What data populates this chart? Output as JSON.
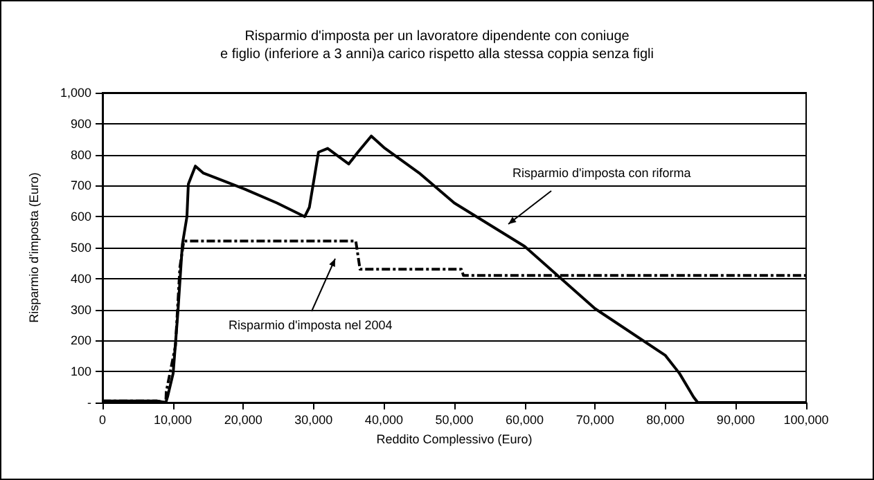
{
  "chart_data": {
    "type": "line",
    "title": "Risparmio d'imposta per un lavoratore dipendente con coniuge\ne figlio (inferiore a 3 anni)a carico rispetto alla stessa coppia senza figli",
    "xlabel": "Reddito Complessivo (Euro)",
    "ylabel": "Risparmio d'imposta (Euro)",
    "xlim": [
      0,
      100000
    ],
    "ylim": [
      0,
      1000
    ],
    "xticks": [
      {
        "value": 0,
        "label": "0"
      },
      {
        "value": 10000,
        "label": "10,000"
      },
      {
        "value": 20000,
        "label": "20,000"
      },
      {
        "value": 30000,
        "label": "30,000"
      },
      {
        "value": 40000,
        "label": "40,000"
      },
      {
        "value": 50000,
        "label": "50,000"
      },
      {
        "value": 60000,
        "label": "60,000"
      },
      {
        "value": 70000,
        "label": "70,000"
      },
      {
        "value": 80000,
        "label": "80,000"
      },
      {
        "value": 90000,
        "label": "90,000"
      },
      {
        "value": 100000,
        "label": "100,000"
      }
    ],
    "yticks": [
      {
        "value": 0,
        "label": "-"
      },
      100,
      200,
      300,
      400,
      500,
      600,
      700,
      800,
      900,
      {
        "value": 1000,
        "label": "1,000"
      }
    ],
    "grid": "y",
    "marker": "none",
    "series": [
      {
        "color": "#000000",
        "line_style": "solid",
        "x": [
          0,
          7700,
          9000,
          9250,
          10040,
          10700,
          11350,
          12000,
          12200,
          13200,
          14300,
          20200,
          24800,
          28740,
          29400,
          30700,
          32000,
          35000,
          36300,
          38200,
          40000,
          45000,
          50000,
          60000,
          70000,
          80000,
          82000,
          84000,
          84600,
          100000
        ],
        "values": [
          5,
          5,
          0,
          19,
          94,
          287,
          510,
          600,
          705,
          763,
          741,
          689,
          644,
          600,
          630,
          808,
          820,
          770,
          808,
          860,
          823,
          741,
          644,
          504,
          303,
          152,
          94,
          18,
          0,
          0
        ]
      },
      {
        "color": "#000000",
        "line_style": "dashed",
        "x": [
          0,
          7700,
          9000,
          9060,
          10370,
          11000,
          11550,
          36000,
          36600,
          51000,
          51300,
          100000
        ],
        "values": [
          5,
          5,
          0,
          35,
          183,
          437,
          521,
          521,
          430,
          430,
          410,
          410
        ]
      }
    ],
    "annotations": [
      "Risparmio d'imposta con riforma",
      "Risparmio d'imposta nel 2004"
    ]
  }
}
